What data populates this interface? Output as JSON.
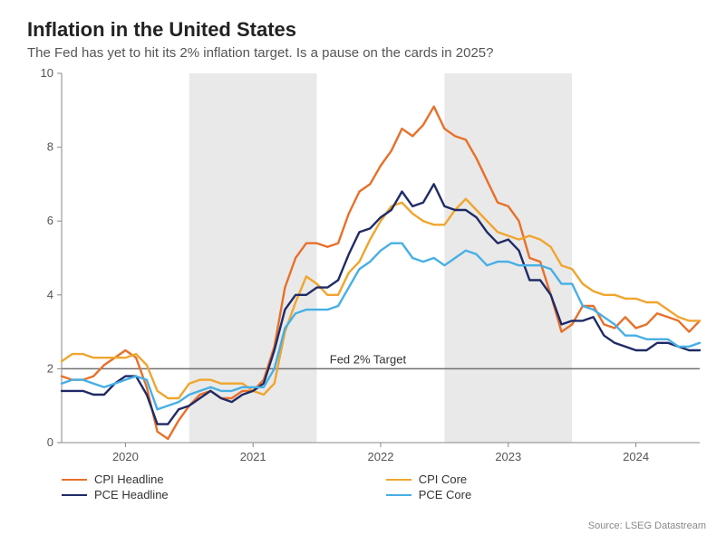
{
  "title": "Inflation in the United States",
  "subtitle": "The Fed has yet to hit its 2% inflation target. Is a pause on the cards in 2025?",
  "source": "Source: LSEG Datastream",
  "chart": {
    "type": "line",
    "background": "#ffffff",
    "plot_bg_bands": [
      {
        "from": "2019-07",
        "to": "2020-07",
        "color": "#ffffff"
      },
      {
        "from": "2020-07",
        "to": "2021-07",
        "color": "#e9e9e9"
      },
      {
        "from": "2021-07",
        "to": "2022-07",
        "color": "#ffffff"
      },
      {
        "from": "2022-07",
        "to": "2023-07",
        "color": "#e9e9e9"
      },
      {
        "from": "2023-07",
        "to": "2024-07",
        "color": "#ffffff"
      }
    ],
    "ylim": [
      0,
      10
    ],
    "ytick_step": 2,
    "yticks": [
      0,
      2,
      4,
      6,
      8,
      10
    ],
    "xlim": [
      "2019-07",
      "2024-07"
    ],
    "xtick_labels": [
      "2020",
      "2021",
      "2022",
      "2023",
      "2024"
    ],
    "xtick_positions": [
      "2020-01",
      "2021-01",
      "2022-01",
      "2023-01",
      "2024-01"
    ],
    "axis_color": "#888888",
    "tick_color": "#888888",
    "text_color": "#555555",
    "line_width": 2.4,
    "target_line": {
      "value": 2,
      "label": "Fed 2% Target",
      "color": "#707070",
      "width": 1.5
    },
    "dates": [
      "2019-07",
      "2019-08",
      "2019-09",
      "2019-10",
      "2019-11",
      "2019-12",
      "2020-01",
      "2020-02",
      "2020-03",
      "2020-04",
      "2020-05",
      "2020-06",
      "2020-07",
      "2020-08",
      "2020-09",
      "2020-10",
      "2020-11",
      "2020-12",
      "2021-01",
      "2021-02",
      "2021-03",
      "2021-04",
      "2021-05",
      "2021-06",
      "2021-07",
      "2021-08",
      "2021-09",
      "2021-10",
      "2021-11",
      "2021-12",
      "2022-01",
      "2022-02",
      "2022-03",
      "2022-04",
      "2022-05",
      "2022-06",
      "2022-07",
      "2022-08",
      "2022-09",
      "2022-10",
      "2022-11",
      "2022-12",
      "2023-01",
      "2023-02",
      "2023-03",
      "2023-04",
      "2023-05",
      "2023-06",
      "2023-07",
      "2023-08",
      "2023-09",
      "2023-10",
      "2023-11",
      "2023-12",
      "2024-01",
      "2024-02",
      "2024-03",
      "2024-04",
      "2024-05",
      "2024-06",
      "2024-07"
    ],
    "series": [
      {
        "name": "CPI Headline",
        "color": "#e8702a",
        "values": [
          1.8,
          1.7,
          1.7,
          1.8,
          2.1,
          2.3,
          2.5,
          2.3,
          1.5,
          0.3,
          0.1,
          0.6,
          1.0,
          1.3,
          1.4,
          1.2,
          1.2,
          1.4,
          1.4,
          1.7,
          2.6,
          4.2,
          5.0,
          5.4,
          5.4,
          5.3,
          5.4,
          6.2,
          6.8,
          7.0,
          7.5,
          7.9,
          8.5,
          8.3,
          8.6,
          9.1,
          8.5,
          8.3,
          8.2,
          7.7,
          7.1,
          6.5,
          6.4,
          6.0,
          5.0,
          4.9,
          4.0,
          3.0,
          3.2,
          3.7,
          3.7,
          3.2,
          3.1,
          3.4,
          3.1,
          3.2,
          3.5,
          3.4,
          3.3,
          3.0,
          3.3
        ]
      },
      {
        "name": "CPI Core",
        "color": "#f0a52e",
        "values": [
          2.2,
          2.4,
          2.4,
          2.3,
          2.3,
          2.3,
          2.3,
          2.4,
          2.1,
          1.4,
          1.2,
          1.2,
          1.6,
          1.7,
          1.7,
          1.6,
          1.6,
          1.6,
          1.4,
          1.3,
          1.6,
          3.0,
          3.8,
          4.5,
          4.3,
          4.0,
          4.0,
          4.6,
          4.9,
          5.5,
          6.0,
          6.4,
          6.5,
          6.2,
          6.0,
          5.9,
          5.9,
          6.3,
          6.6,
          6.3,
          6.0,
          5.7,
          5.6,
          5.5,
          5.6,
          5.5,
          5.3,
          4.8,
          4.7,
          4.3,
          4.1,
          4.0,
          4.0,
          3.9,
          3.9,
          3.8,
          3.8,
          3.6,
          3.4,
          3.3,
          3.3
        ]
      },
      {
        "name": "PCE Headline",
        "color": "#1f2a66",
        "values": [
          1.4,
          1.4,
          1.4,
          1.3,
          1.3,
          1.6,
          1.8,
          1.8,
          1.3,
          0.5,
          0.5,
          0.9,
          1.0,
          1.2,
          1.4,
          1.2,
          1.1,
          1.3,
          1.4,
          1.6,
          2.5,
          3.6,
          4.0,
          4.0,
          4.2,
          4.2,
          4.4,
          5.1,
          5.7,
          5.8,
          6.1,
          6.3,
          6.8,
          6.4,
          6.5,
          7.0,
          6.4,
          6.3,
          6.3,
          6.1,
          5.7,
          5.4,
          5.5,
          5.2,
          4.4,
          4.4,
          4.0,
          3.2,
          3.3,
          3.3,
          3.4,
          2.9,
          2.7,
          2.6,
          2.5,
          2.5,
          2.7,
          2.7,
          2.6,
          2.5,
          2.5
        ]
      },
      {
        "name": "PCE Core",
        "color": "#46afe5",
        "values": [
          1.6,
          1.7,
          1.7,
          1.6,
          1.5,
          1.6,
          1.7,
          1.8,
          1.7,
          0.9,
          1.0,
          1.1,
          1.3,
          1.4,
          1.5,
          1.4,
          1.4,
          1.5,
          1.5,
          1.5,
          2.0,
          3.1,
          3.5,
          3.6,
          3.6,
          3.6,
          3.7,
          4.2,
          4.7,
          4.9,
          5.2,
          5.4,
          5.4,
          5.0,
          4.9,
          5.0,
          4.8,
          5.0,
          5.2,
          5.1,
          4.8,
          4.9,
          4.9,
          4.8,
          4.8,
          4.8,
          4.7,
          4.3,
          4.3,
          3.7,
          3.6,
          3.4,
          3.2,
          2.9,
          2.9,
          2.8,
          2.8,
          2.8,
          2.6,
          2.6,
          2.7
        ]
      }
    ]
  }
}
